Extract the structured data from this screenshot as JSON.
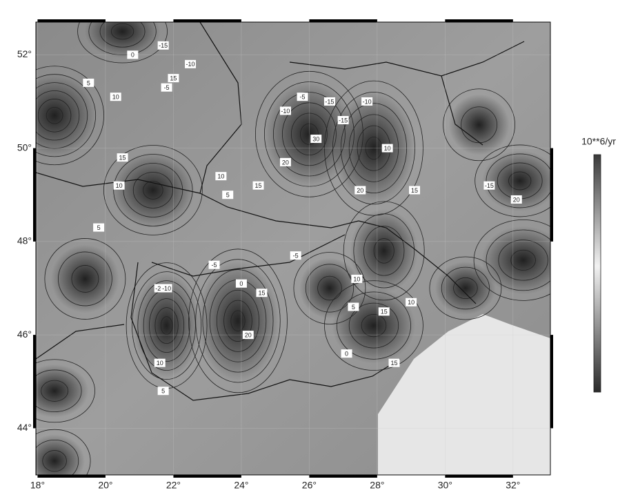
{
  "map": {
    "lon_ticks": [
      {
        "value": 18,
        "label": "18°"
      },
      {
        "value": 20,
        "label": "20°"
      },
      {
        "value": 22,
        "label": "22°"
      },
      {
        "value": 24,
        "label": "24°"
      },
      {
        "value": 26,
        "label": "26°"
      },
      {
        "value": 28,
        "label": "28°"
      },
      {
        "value": 30,
        "label": "30°"
      },
      {
        "value": 32,
        "label": "32°"
      }
    ],
    "lat_ticks": [
      {
        "value": 44,
        "label": "44°"
      },
      {
        "value": 46,
        "label": "46°"
      },
      {
        "value": 48,
        "label": "48°"
      },
      {
        "value": 50,
        "label": "50°"
      },
      {
        "value": 52,
        "label": "52°"
      }
    ],
    "lonlim": [
      17.95,
      33.1
    ],
    "latlim": [
      43.0,
      52.7
    ],
    "contour_labels": [
      -15,
      -10,
      -5,
      0,
      5,
      10,
      15,
      30,
      -5,
      -10,
      -15,
      20,
      15,
      5,
      10,
      -10,
      -15,
      10,
      15,
      20,
      -20,
      15,
      10,
      5,
      -5,
      0,
      -10,
      15,
      20,
      10,
      5,
      -5,
      10,
      15,
      -15,
      20,
      5,
      0,
      10,
      15
    ],
    "colorbar": {
      "title": "10**6/yr",
      "lim": [
        -40,
        35
      ],
      "ticks": [
        35,
        30,
        25,
        20,
        15,
        10,
        5,
        0,
        -5,
        -10,
        -15,
        -20,
        -25,
        -30,
        -35,
        -40
      ]
    }
  }
}
